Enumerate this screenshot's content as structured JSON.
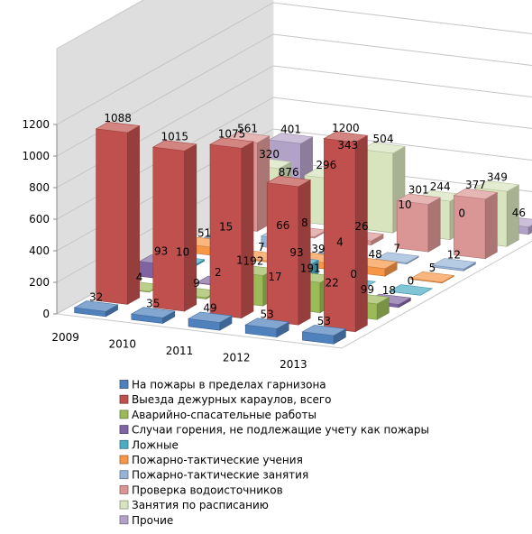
{
  "chart_data": {
    "type": "bar",
    "three_d": true,
    "categories": [
      "2009",
      "2010",
      "2011",
      "2012",
      "2013"
    ],
    "series": [
      {
        "name": "На пожары в пределах гарнизона",
        "color": "#4f81bd",
        "values": [
          32,
          35,
          49,
          53,
          53
        ]
      },
      {
        "name": "Выезда дежурных караулов, всего",
        "color": "#c0504d",
        "values": [
          1088,
          1015,
          1075,
          876,
          1200
        ]
      },
      {
        "name": "Аварийно-спасательные работы",
        "color": "#9bbb59",
        "values": [
          4,
          9,
          192,
          191,
          99
        ]
      },
      {
        "name": "Случаи горения, не подлежащие учету как пожары",
        "color": "#8064a2",
        "values": [
          93,
          2,
          17,
          22,
          18
        ]
      },
      {
        "name": "Ложные",
        "color": "#4bacc6",
        "values": [
          10,
          1,
          93,
          0,
          0
        ]
      },
      {
        "name": "Пожарно-тактические учения",
        "color": "#f79646",
        "values": [
          51,
          7,
          39,
          48,
          5
        ]
      },
      {
        "name": "Пожарно-тактические занятия",
        "color": "#95b3d7",
        "values": [
          15,
          66,
          4,
          7,
          12
        ]
      },
      {
        "name": "Проверка водоисточников",
        "color": "#da9694",
        "values": [
          561,
          8,
          26,
          301,
          377
        ]
      },
      {
        "name": "Занятия по расписанию",
        "color": "#d7e4bd",
        "values": [
          320,
          296,
          504,
          244,
          349
        ]
      },
      {
        "name": "Прочие",
        "color": "#b3a2c7",
        "values": [
          401,
          343,
          10,
          0,
          46
        ]
      }
    ],
    "ylim": [
      0,
      1200
    ],
    "yticks": [
      0,
      200,
      400,
      600,
      800,
      1000,
      1200
    ],
    "grid": true,
    "legend_position": "bottom"
  }
}
